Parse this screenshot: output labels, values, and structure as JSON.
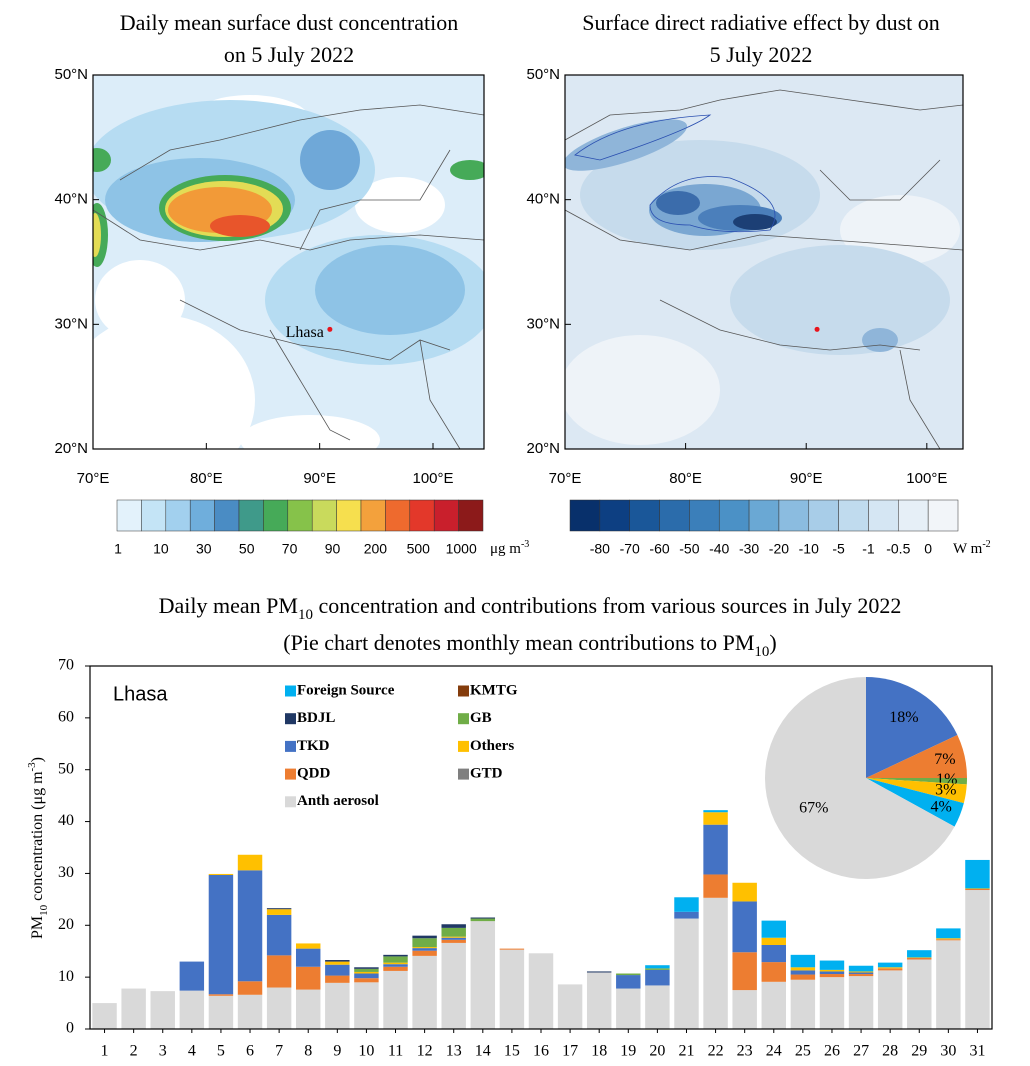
{
  "chart_data": [
    {
      "type": "map",
      "title": [
        "Daily mean surface dust concentration",
        "on 5 July 2022"
      ],
      "xlim": [
        70,
        104.5
      ],
      "ylim": [
        20,
        50
      ],
      "xticks": [
        {
          "value": 70,
          "label": "70°E"
        },
        {
          "value": 80,
          "label": "80°E"
        },
        {
          "value": 90,
          "label": "90°E"
        },
        {
          "value": 100,
          "label": "100°E"
        }
      ],
      "yticks": [
        {
          "value": 20,
          "label": "20°N"
        },
        {
          "value": 30,
          "label": "30°N"
        },
        {
          "value": 40,
          "label": "40°N"
        },
        {
          "value": 50,
          "label": "50°N"
        }
      ],
      "point": {
        "x": 90.9,
        "y": 29.6,
        "label": "Lhasa",
        "color": "#e8141c"
      },
      "colorbar": {
        "colors": [
          "#e3f2fb",
          "#c4e4f6",
          "#a2d0ee",
          "#6faedc",
          "#4a8cc4",
          "#3f9a8a",
          "#46aa58",
          "#86c24a",
          "#c9da5c",
          "#f6df4e",
          "#f3a13c",
          "#ee6a2e",
          "#e3382a",
          "#c91f2c",
          "#8c1a1a"
        ],
        "ticks": [
          1,
          10,
          30,
          50,
          70,
          90,
          200,
          500,
          1000
        ],
        "unit": "μg m",
        "unit_sup": "-3"
      }
    },
    {
      "type": "map",
      "title": [
        "Surface direct radiative effect by dust on",
        "5 July 2022"
      ],
      "xlim": [
        70,
        103
      ],
      "ylim": [
        20,
        50
      ],
      "xticks": [
        {
          "value": 70,
          "label": "70°E"
        },
        {
          "value": 80,
          "label": "80°E"
        },
        {
          "value": 90,
          "label": "90°E"
        },
        {
          "value": 100,
          "label": "100°E"
        }
      ],
      "yticks": [
        {
          "value": 20,
          "label": "20°N"
        },
        {
          "value": 30,
          "label": "30°N"
        },
        {
          "value": 40,
          "label": "40°N"
        },
        {
          "value": 50,
          "label": "50°N"
        }
      ],
      "point": {
        "x": 90.9,
        "y": 29.6,
        "color": "#e8141c"
      },
      "colorbar": {
        "colors": [
          "#08306b",
          "#0d3f82",
          "#1a5799",
          "#2b6cab",
          "#3b7fba",
          "#4b91c6",
          "#6aa8d4",
          "#8bbce0",
          "#a8cde8",
          "#c0dbee",
          "#d5e6f3",
          "#e6eff7",
          "#f2f5f9"
        ],
        "ticks": [
          -80,
          -70,
          -60,
          -50,
          -40,
          -30,
          -20,
          -10,
          -5,
          -1,
          -0.5,
          0
        ],
        "unit": "W m",
        "unit_sup": "-2"
      }
    },
    {
      "type": "bar",
      "stacked": true,
      "title": [
        {
          "text": "Daily mean PM",
          "sub": "10",
          "tail": " concentration and contributions from various sources in July 2022"
        },
        {
          "text": "(Pie chart denotes monthly mean contributions to PM",
          "sub": "10",
          "tail": ")"
        }
      ],
      "ylabel": {
        "text": "PM",
        "sub": "10",
        "mid": " concentration (μg m",
        "sup": "-3",
        "tail": ")"
      },
      "annotation": "Lhasa",
      "categories": [
        "1",
        "2",
        "3",
        "4",
        "5",
        "6",
        "7",
        "8",
        "9",
        "10",
        "11",
        "12",
        "13",
        "14",
        "15",
        "16",
        "17",
        "18",
        "19",
        "20",
        "21",
        "22",
        "23",
        "24",
        "25",
        "26",
        "27",
        "28",
        "29",
        "30",
        "31"
      ],
      "ylim": [
        0,
        70
      ],
      "yticks": [
        0,
        10,
        20,
        30,
        40,
        50,
        60,
        70
      ],
      "series": [
        {
          "name": "Anth aerosol",
          "color": "#d9d9d9",
          "values": [
            5.0,
            7.8,
            7.3,
            7.4,
            6.4,
            6.6,
            8.0,
            7.6,
            8.9,
            9.0,
            11.2,
            14.1,
            16.6,
            20.8,
            15.3,
            14.6,
            8.6,
            10.9,
            7.8,
            8.4,
            21.3,
            25.3,
            7.5,
            9.1,
            9.5,
            10.0,
            10.2,
            11.3,
            13.4,
            17.1,
            26.8
          ]
        },
        {
          "name": "QDD",
          "color": "#ed7d31",
          "values": [
            0,
            0,
            0,
            0,
            0.3,
            2.6,
            6.2,
            4.4,
            1.4,
            0.8,
            0.8,
            1.0,
            0.6,
            0,
            0.2,
            0,
            0,
            0,
            0,
            0,
            0,
            4.5,
            7.3,
            3.8,
            1.0,
            0.6,
            0.4,
            0.4,
            0.3,
            0.2,
            0.2
          ]
        },
        {
          "name": "TKD",
          "color": "#4472c4",
          "values": [
            0,
            0,
            0,
            5.6,
            23.0,
            21.4,
            7.8,
            3.5,
            2.1,
            0.9,
            0.5,
            0.5,
            0.4,
            0,
            0,
            0,
            0,
            0,
            2.6,
            3.0,
            1.3,
            9.6,
            9.8,
            3.3,
            0.8,
            0.5,
            0.3,
            0,
            0,
            0,
            0
          ]
        },
        {
          "name": "Others",
          "color": "#ffc000",
          "values": [
            0,
            0,
            0,
            0,
            0.2,
            3.0,
            1.1,
            1.0,
            0.6,
            0.3,
            0.3,
            0.2,
            0.2,
            0,
            0,
            0,
            0,
            0,
            0,
            0,
            0,
            2.4,
            3.6,
            1.4,
            0.6,
            0.3,
            0.2,
            0.2,
            0.1,
            0.2,
            0.1
          ]
        },
        {
          "name": "GB",
          "color": "#70ad47",
          "values": [
            0,
            0,
            0,
            0,
            0,
            0,
            0,
            0,
            0,
            0.6,
            1.2,
            1.7,
            1.7,
            0.5,
            0,
            0,
            0,
            0,
            0.3,
            0.3,
            0,
            0,
            0,
            0,
            0,
            0,
            0,
            0,
            0,
            0,
            0
          ]
        },
        {
          "name": "GTD",
          "color": "#7f7f7f",
          "values": [
            0,
            0,
            0,
            0,
            0,
            0,
            0,
            0,
            0,
            0,
            0,
            0,
            0,
            0,
            0,
            0,
            0,
            0,
            0,
            0,
            0,
            0,
            0,
            0,
            0,
            0,
            0,
            0,
            0,
            0,
            0
          ]
        },
        {
          "name": "BDJL",
          "color": "#203864",
          "values": [
            0,
            0,
            0,
            0,
            0,
            0,
            0.2,
            0,
            0.3,
            0.3,
            0.3,
            0.5,
            0.7,
            0.2,
            0,
            0,
            0,
            0.2,
            0,
            0,
            0,
            0,
            0,
            0,
            0,
            0,
            0,
            0,
            0,
            0,
            0
          ]
        },
        {
          "name": "KMTG",
          "color": "#843c0c",
          "values": [
            0,
            0,
            0,
            0,
            0,
            0,
            0,
            0,
            0,
            0,
            0,
            0,
            0,
            0,
            0,
            0,
            0,
            0,
            0,
            0,
            0,
            0,
            0,
            0,
            0,
            0,
            0,
            0,
            0,
            0,
            0
          ]
        },
        {
          "name": "Foreign Source",
          "color": "#00b0f0",
          "values": [
            0,
            0,
            0,
            0,
            0,
            0,
            0,
            0,
            0,
            0,
            0,
            0,
            0,
            0,
            0,
            0,
            0,
            0,
            0,
            0.6,
            2.8,
            0.4,
            0,
            3.3,
            2.4,
            1.8,
            1.1,
            0.9,
            1.4,
            1.9,
            5.5
          ]
        }
      ]
    },
    {
      "type": "pie",
      "values": [
        18,
        7,
        1,
        3,
        4,
        67
      ],
      "value_labels": [
        "18%",
        "7%",
        "1%",
        "3%",
        "4%",
        "67%"
      ],
      "colors": [
        "#4472c4",
        "#ed7d31",
        "#70ad47",
        "#ffc000",
        "#00b0f0",
        "#d9d9d9"
      ]
    }
  ]
}
